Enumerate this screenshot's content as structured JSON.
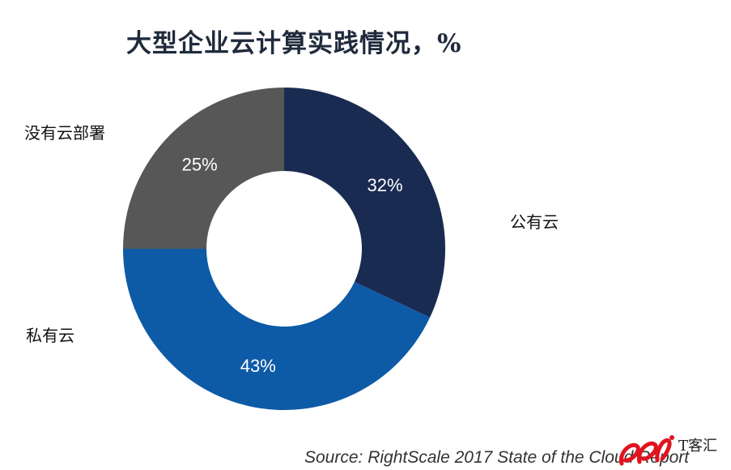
{
  "chart_data": {
    "type": "pie",
    "title": "大型企业云计算实践情况，%",
    "categories": [
      "公有云",
      "私有云",
      "没有云部署"
    ],
    "values": [
      32,
      43,
      25
    ],
    "value_labels": [
      "32%",
      "43%",
      "25%"
    ],
    "colors": [
      "#1a2b52",
      "#0d5aa7",
      "#575757"
    ],
    "donut": true,
    "source": "Source: RightScale 2017 State of the Cloud Report"
  },
  "watermark": {
    "text": "T客汇",
    "logo_color": "#e0141e"
  }
}
